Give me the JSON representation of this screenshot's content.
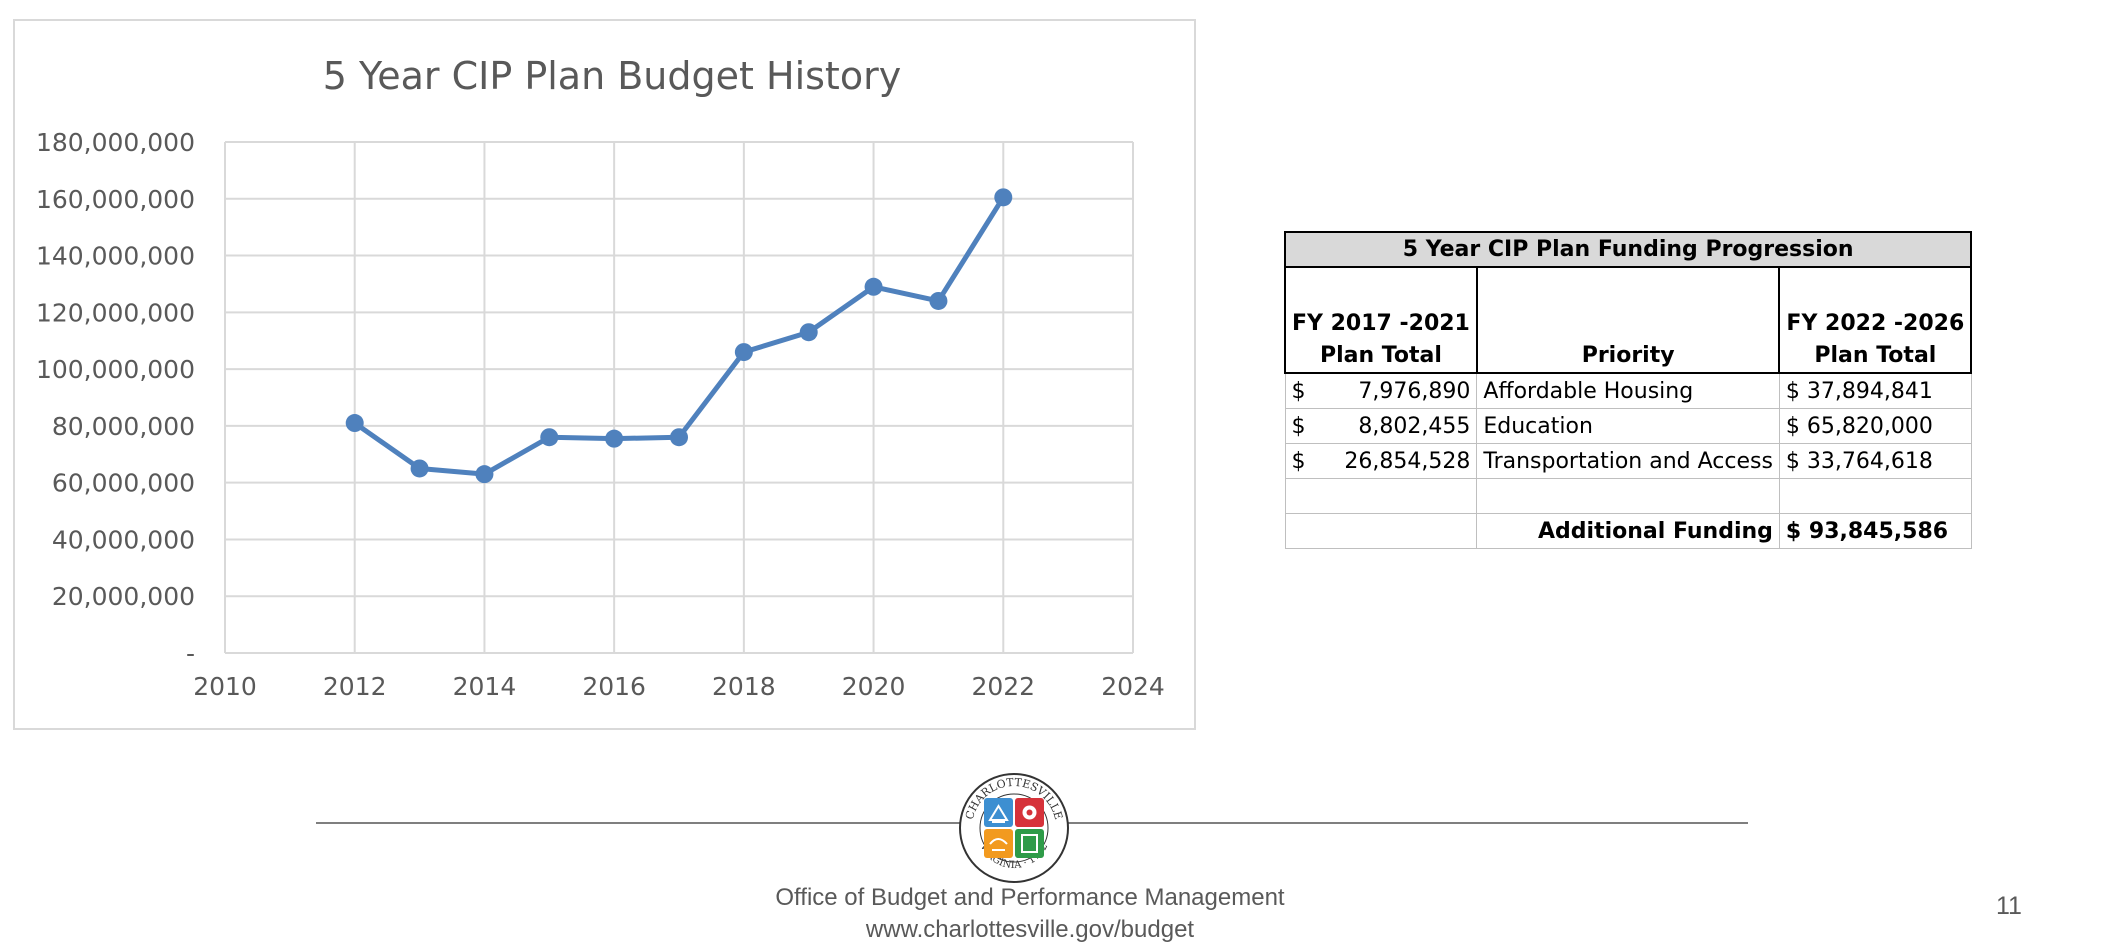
{
  "chart_data": {
    "type": "line",
    "title": "5 Year CIP Plan Budget History",
    "xlabel": "",
    "ylabel": "",
    "x": [
      2012,
      2013,
      2014,
      2015,
      2016,
      2017,
      2018,
      2019,
      2020,
      2021,
      2022
    ],
    "series": [
      {
        "values": [
          81000000,
          65000000,
          63000000,
          76000000,
          75500000,
          76000000,
          106000000,
          113000000,
          129000000,
          124000000,
          160500000
        ]
      }
    ],
    "xlim": [
      2010,
      2024
    ],
    "ylim": [
      0,
      180000000
    ],
    "x_ticks": [
      "2010",
      "2012",
      "2014",
      "2016",
      "2018",
      "2020",
      "2022",
      "2024"
    ],
    "y_ticks": [
      "-",
      "20,000,000",
      "40,000,000",
      "60,000,000",
      "80,000,000",
      "100,000,000",
      "120,000,000",
      "140,000,000",
      "160,000,000",
      "180,000,000"
    ],
    "grid": true,
    "legend": "none",
    "line_color": "#4f81bd"
  },
  "table": {
    "title": "5 Year CIP Plan Funding Progression",
    "headers": {
      "left_line1": "FY 2017 -2021",
      "left_line2": "Plan Total",
      "middle": "Priority",
      "right_line1": "FY 2022 -2026",
      "right_line2": "Plan Total"
    },
    "rows": [
      {
        "sym_left": "$",
        "left": "7,976,890",
        "priority": "Affordable Housing",
        "sym_right": "$",
        "right": "37,894,841"
      },
      {
        "sym_left": "$",
        "left": "8,802,455",
        "priority": "Education",
        "sym_right": "$",
        "right": "65,820,000"
      },
      {
        "sym_left": "$",
        "left": "26,854,528",
        "priority": "Transportation and Access",
        "sym_right": "$",
        "right": "33,764,618"
      }
    ],
    "total": {
      "label": "Additional Funding",
      "sym": "$",
      "value": "93,845,586"
    }
  },
  "footer": {
    "office": "Office of Budget and Performance Management",
    "url": "www.charlottesville.gov/budget",
    "page_number": "11"
  },
  "seal": {
    "top_text": "CHARLOTTESVILLE",
    "bottom_text": "VIRGINIA · 1762",
    "colors": {
      "blue": "#3d8fd1",
      "red": "#d6323a",
      "orange": "#f29a1f",
      "green": "#2e9b48"
    }
  }
}
